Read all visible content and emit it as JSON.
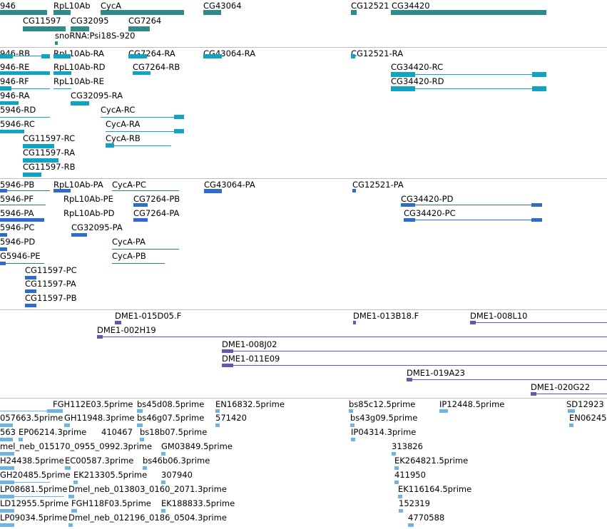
{
  "tracks": {
    "genes": {
      "labels": [
        "946",
        "RpL10Ab",
        "CycA",
        "CG43064",
        "CG12521",
        "CG34420",
        "CG11597",
        "CG32095",
        "CG7264",
        "snoRNA:Psi18S-920"
      ]
    },
    "transcripts": {
      "labels": [
        "946-RB",
        "RpL10Ab-RA",
        "CG7264-RA",
        "CG43064-RA",
        "CG12521-RA",
        "946-RE",
        "RpL10Ab-RD",
        "CG7264-RB",
        "CG34420-RC",
        "946-RF",
        "RpL10Ab-RE",
        "CG34420-RD",
        "946-RA",
        "CG32095-RA",
        "5946-RD",
        "CycA-RC",
        "5946-RC",
        "CycA-RA",
        "CG11597-RC",
        "CycA-RB",
        "CG11597-RA",
        "CG11597-RB"
      ]
    },
    "proteins": {
      "labels": [
        "5946-PB",
        "RpL10Ab-PA",
        "CycA-PC",
        "CG43064-PA",
        "CG12521-PA",
        "5946-PF",
        "RpL10Ab-PE",
        "CG7264-PB",
        "CG34420-PD",
        "5946-PA",
        "RpL10Ab-PD",
        "CG7264-PA",
        "CG34420-PC",
        "5946-PC",
        "CG32095-PA",
        "5946-PD",
        "CycA-PA",
        "G5946-PE",
        "CycA-PB",
        "CG11597-PC",
        "CG11597-PA",
        "CG11597-PB"
      ]
    },
    "cdna": {
      "labels": [
        "DME1-015D05.F",
        "DME1-013B18.F",
        "DME1-008L10",
        "DME1-002H19",
        "DME1-008J02",
        "DME1-011E09",
        "DME1-019A23",
        "DME1-020G22"
      ]
    },
    "ests": {
      "labels": [
        "FGH112E03.5prime",
        "bs45d08.5prime",
        "EN16832.5prime",
        "bs85c12.5prime",
        "IP12448.5prime",
        "SD12923",
        "057663.5prime",
        "GH11948.3prime",
        "bs46g07.5prime",
        "571420",
        "bs43g09.5prime",
        "EN06245",
        "563",
        "EP06214.3prime",
        "410467",
        "bs18b07.5prime",
        "IP04314.3prime",
        "mel_neb_015170_0955_0992.3prime",
        "GM03849.5prime",
        "313826",
        "H24438.5prime",
        "EC00587.3prime",
        "bs46b06.3prime",
        "EK264821.5prime",
        "GH20485.5prime",
        "EK213305.5prime",
        "307940",
        "411950",
        "LP08681.5prime",
        "Dmel_neb_013803_0160_2071.3prime",
        "EK116164.5prime",
        "LD12955.5prime",
        "FGH118F03.5prime",
        "EK188833.5prime",
        "152319",
        "LP09034.5prime",
        "Dmel_neb_012196_0186_0504.3prime",
        "4770588"
      ]
    }
  },
  "colors": {
    "gene": "#2f8a8a",
    "transcript": "#11a3c2",
    "protein": "#2e6bd1",
    "cdna": "#6a55a8",
    "est": "#6fb3df",
    "divider": "#bfbfbf"
  }
}
